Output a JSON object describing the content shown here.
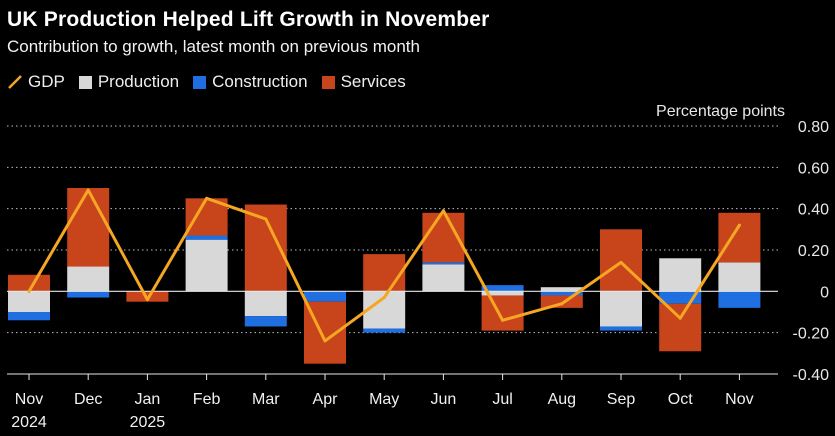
{
  "header": {
    "title": "UK Production Helped Lift Growth in November",
    "subtitle": "Contribution to growth, latest month on previous month"
  },
  "legend": {
    "items": [
      {
        "label": "GDP",
        "color": "#f5a623",
        "kind": "line"
      },
      {
        "label": "Production",
        "color": "#d8d8d8",
        "kind": "box"
      },
      {
        "label": "Construction",
        "color": "#1f6fe0",
        "kind": "box"
      },
      {
        "label": "Services",
        "color": "#c8451b",
        "kind": "box"
      }
    ]
  },
  "chart_data": {
    "type": "bar",
    "stacked": true,
    "title": "UK Production Helped Lift Growth in November",
    "subtitle": "Contribution to growth, latest month on previous month",
    "ylabel": "Percentage points",
    "ylim": [
      -0.4,
      0.8
    ],
    "yticks": [
      -0.4,
      -0.2,
      0,
      0.2,
      0.4,
      0.6,
      0.8
    ],
    "ytick_labels": [
      "-0.40",
      "-0.20",
      "0",
      "0.20",
      "0.40",
      "0.60",
      "0.80"
    ],
    "categories": [
      "Nov",
      "Dec",
      "Jan",
      "Feb",
      "Mar",
      "Apr",
      "May",
      "Jun",
      "Jul",
      "Aug",
      "Sep",
      "Oct",
      "Nov"
    ],
    "category_sublabels": [
      "2024",
      "",
      "2025",
      "",
      "",
      "",
      "",
      "",
      "",
      "",
      "",
      "",
      ""
    ],
    "series": [
      {
        "name": "Production",
        "color": "#d8d8d8",
        "values": [
          -0.1,
          0.12,
          0.0,
          0.25,
          -0.12,
          0.0,
          -0.18,
          0.13,
          -0.02,
          0.02,
          -0.17,
          0.16,
          0.14
        ]
      },
      {
        "name": "Construction",
        "color": "#1f6fe0",
        "values": [
          -0.04,
          -0.03,
          0.0,
          0.02,
          -0.05,
          -0.05,
          -0.02,
          0.01,
          0.03,
          -0.02,
          -0.02,
          -0.06,
          -0.08
        ]
      },
      {
        "name": "Services",
        "color": "#c8451b",
        "values": [
          0.08,
          0.38,
          -0.05,
          0.18,
          0.42,
          -0.3,
          0.18,
          0.24,
          -0.17,
          -0.06,
          0.3,
          -0.23,
          0.24
        ]
      },
      {
        "name": "GDP",
        "type": "line",
        "color": "#f5a623",
        "values": [
          0.0,
          0.49,
          -0.04,
          0.45,
          0.35,
          -0.24,
          -0.03,
          0.39,
          -0.14,
          -0.06,
          0.14,
          -0.13,
          0.32
        ]
      }
    ]
  }
}
